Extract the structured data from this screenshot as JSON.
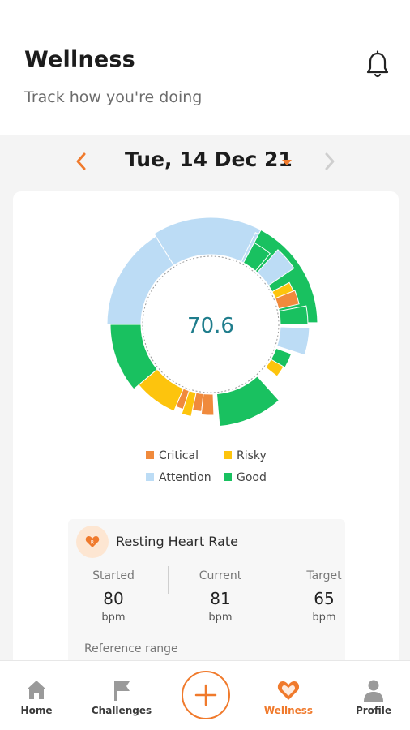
{
  "header": {
    "title": "Wellness",
    "subtitle": "Track how you're doing",
    "bell_icon": "bell-icon"
  },
  "date_nav": {
    "date": "Tue, 14 Dec 21",
    "prev_icon": "chevron-left-icon",
    "next_icon": "chevron-right-icon",
    "dropdown_icon": "caret-down-icon"
  },
  "colors": {
    "accent": "#f07a2c",
    "critical": "#f08a3c",
    "risky": "#fdc40d",
    "attention": "#bcdcf5",
    "good": "#19c160",
    "score_text": "#1f7d8c"
  },
  "score": {
    "value": "70.6"
  },
  "legend": {
    "critical": "Critical",
    "risky": "Risky",
    "attention": "Attention",
    "good": "Good"
  },
  "metric": {
    "icon": "heart-icon",
    "title": "Resting Heart Rate",
    "started_label": "Started",
    "started_value": "80",
    "started_unit": "bpm",
    "current_label": "Current",
    "current_value": "81",
    "current_unit": "bpm",
    "target_label": "Target",
    "target_value": "65",
    "target_unit": "bpm",
    "reference_label": "Reference range"
  },
  "tabs": {
    "home": "Home",
    "challenges": "Challenges",
    "wellness": "Wellness",
    "profile": "Profile",
    "active": "Wellness"
  }
}
